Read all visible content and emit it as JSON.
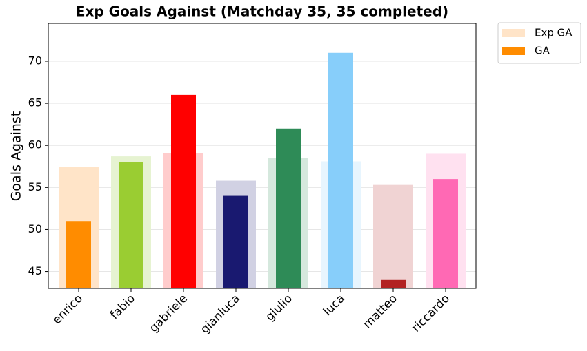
{
  "chart_data": {
    "type": "bar",
    "title": "Exp Goals Against (Matchday 35, 35 completed)",
    "y_label": "Goals Against",
    "categories": [
      "enrico",
      "fabio",
      "gabriele",
      "gianluca",
      "giulio",
      "luca",
      "matteo",
      "riccardo"
    ],
    "series": [
      {
        "name": "Exp GA",
        "color": "#ffe4c8",
        "colors": [
          "#ffe4c8",
          "#e6f3d1",
          "#ffcccc",
          "#d1d1e3",
          "#d5e8dd",
          "#e7f5fe",
          "#f0d3d3",
          "#ffe1f0"
        ],
        "values": [
          57.4,
          58.7,
          59.1,
          55.8,
          58.5,
          58.1,
          55.3,
          59.0
        ]
      },
      {
        "name": "GA",
        "color": "#ff8c00",
        "colors": [
          "#ff8c00",
          "#9acd32",
          "#ff0000",
          "#191970",
          "#2e8b57",
          "#87cefa",
          "#b22222",
          "#ff69b4"
        ],
        "values": [
          51,
          58,
          66,
          54,
          62,
          71,
          44,
          56
        ]
      }
    ],
    "ylim": [
      43,
      74.5
    ],
    "yticks": [
      45,
      50,
      55,
      60,
      65,
      70
    ],
    "grid": true,
    "legend": "outside upper right"
  }
}
